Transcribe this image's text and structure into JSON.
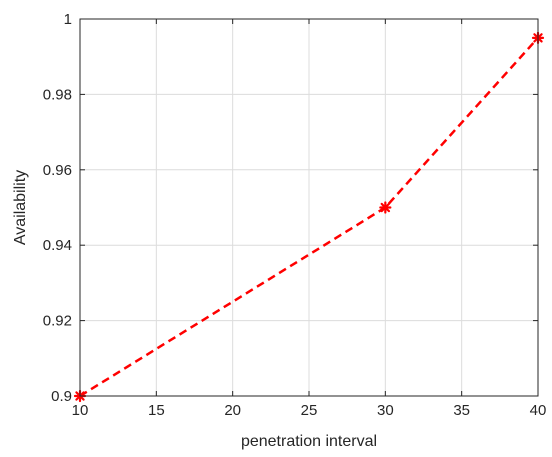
{
  "chart_data": {
    "type": "line",
    "title": "",
    "xlabel": "penetration interval",
    "ylabel": "Availability",
    "x": [
      10,
      30,
      40
    ],
    "series": [
      {
        "values": [
          0.9,
          0.95,
          0.995
        ],
        "color": "#ff0000",
        "line_style": "dashed",
        "marker": "asterisk"
      }
    ],
    "xlim": [
      10,
      40
    ],
    "ylim": [
      0.9,
      1.0
    ],
    "x_ticks": [
      10,
      15,
      20,
      25,
      30,
      35,
      40
    ],
    "y_ticks": [
      0.9,
      0.92,
      0.94,
      0.96,
      0.98,
      1.0
    ],
    "x_tick_labels": [
      "10",
      "15",
      "20",
      "25",
      "30",
      "35",
      "40"
    ],
    "y_tick_labels": [
      "0.9",
      "0.92",
      "0.94",
      "0.96",
      "0.98",
      "1"
    ],
    "grid": true,
    "legend": "none",
    "colors": {
      "axes": "#262626",
      "grid": "#dcdcdc",
      "background": "#ffffff"
    }
  }
}
